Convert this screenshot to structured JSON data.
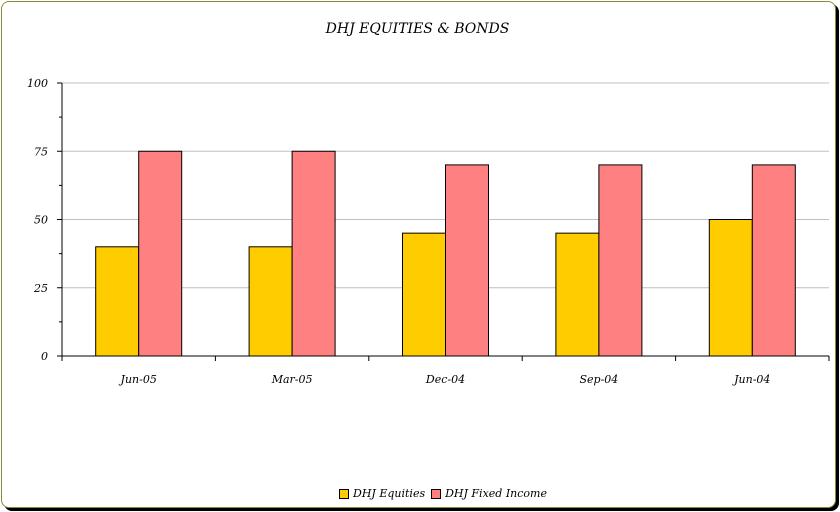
{
  "chart_data": {
    "type": "bar",
    "title": "DHJ EQUITIES & BONDS",
    "xlabel": "",
    "ylabel": "",
    "categories": [
      "Jun-05",
      "Mar-05",
      "Dec-04",
      "Sep-04",
      "Jun-04"
    ],
    "series": [
      {
        "name": "DHJ Equities",
        "values": [
          40,
          40,
          45,
          45,
          50
        ],
        "color": "#ffcc00"
      },
      {
        "name": "DHJ Fixed Income",
        "values": [
          75,
          75,
          70,
          70,
          70
        ],
        "color": "#ff8080"
      }
    ],
    "ylim": [
      0,
      100
    ],
    "yticks": [
      0,
      25,
      50,
      75,
      100
    ],
    "grid": true,
    "legend": "bottom"
  }
}
